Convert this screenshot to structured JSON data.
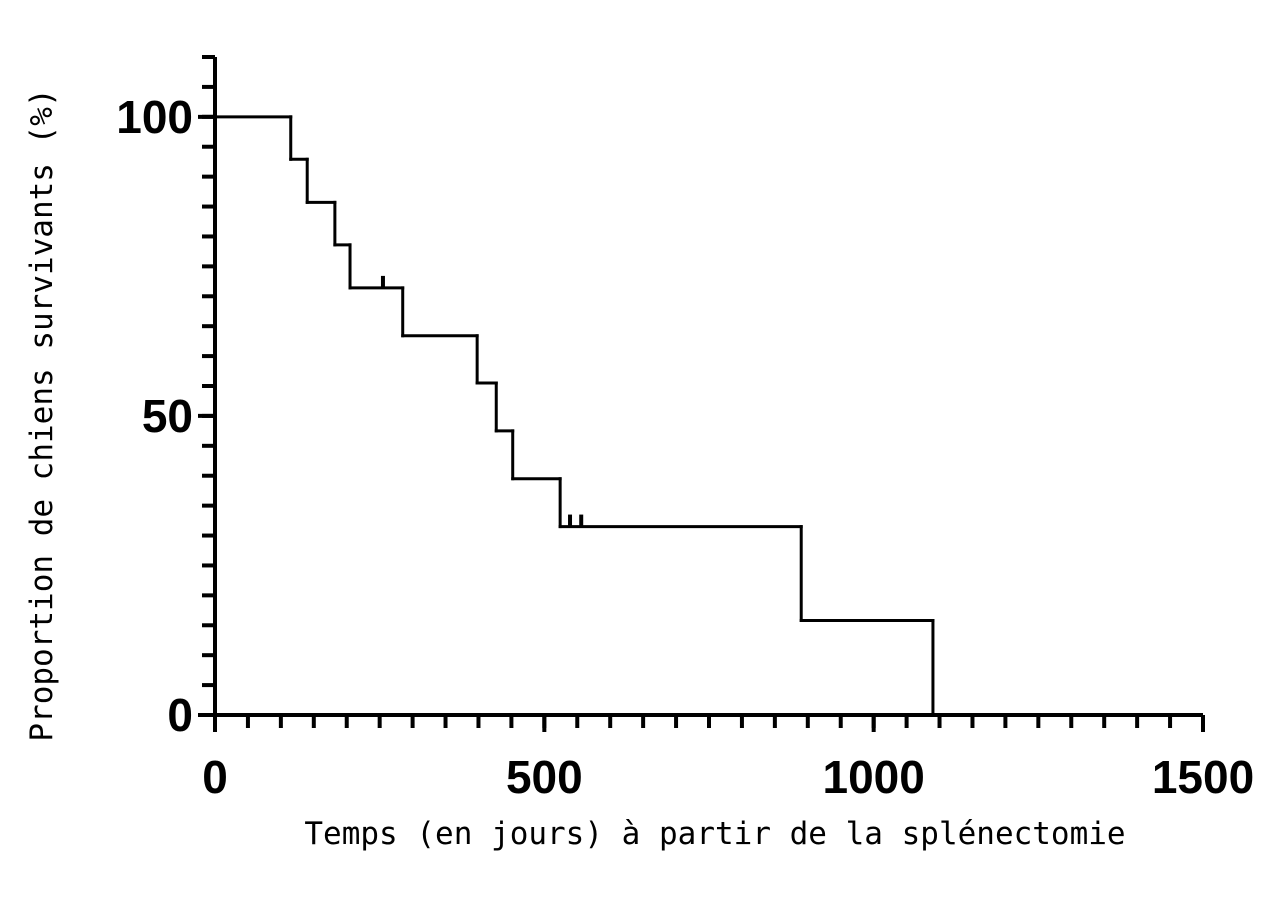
{
  "chart_data": {
    "type": "kaplan-meier",
    "xlabel": "Temps (en jours) à partir de la splénectomie",
    "ylabel": "Proportion de chiens survivants (%)",
    "x": [
      0,
      115,
      140,
      182,
      205,
      285,
      398,
      427,
      452,
      524,
      890,
      1090
    ],
    "values": [
      100,
      92.9,
      85.7,
      78.6,
      71.4,
      63.4,
      55.5,
      47.5,
      39.5,
      31.5,
      15.8,
      0
    ],
    "censored_x": [
      255,
      539,
      556
    ],
    "censored_values": [
      71.4,
      31.5,
      31.5
    ],
    "color": "#000000",
    "xlim": [
      0,
      1500
    ],
    "xticks": [
      0,
      500,
      1000,
      1500
    ],
    "xminor": 50,
    "ylim": [
      0,
      110
    ],
    "yticks": [
      0,
      50,
      100
    ],
    "yminor": 5
  }
}
